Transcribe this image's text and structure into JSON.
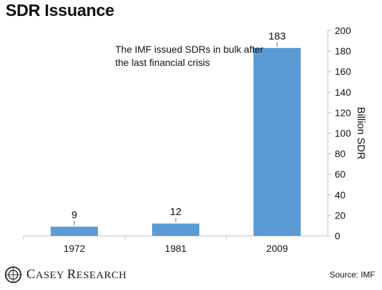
{
  "title": "SDR Issuance",
  "annotation": "The IMF issued SDRs in bulk after the last financial crisis",
  "source": "Source: IMF",
  "brand": {
    "name": "Casey Research",
    "logo_icon": "casey-research-logo-icon"
  },
  "colors": {
    "bar": "#5b9bd5",
    "axis": "#bfbfbf",
    "text": "#111111"
  },
  "chart_data": {
    "type": "bar",
    "categories": [
      "1972",
      "1981",
      "2009"
    ],
    "values": [
      9,
      12,
      183
    ],
    "data_labels": [
      "9",
      "12",
      "183"
    ],
    "title": "SDR Issuance",
    "xlabel": "",
    "ylabel": "Billion SDR",
    "ylim": [
      0,
      200
    ],
    "yticks": [
      0,
      20,
      40,
      60,
      80,
      100,
      120,
      140,
      160,
      180,
      200
    ],
    "y_axis_side": "right",
    "grid": false,
    "legend": "none"
  }
}
